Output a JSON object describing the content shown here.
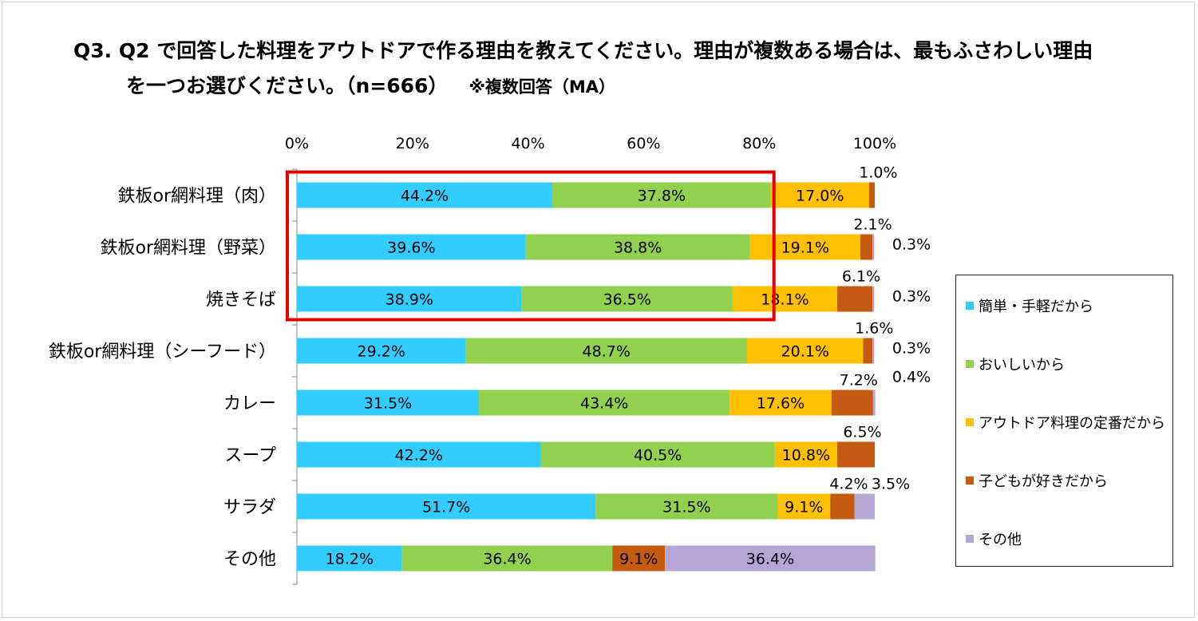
{
  "title": {
    "line1": "Q3. Q2 で回答した料理をアウトドアで作る理由を教えてください。理由が複数ある場合は、最もふさわしい理由",
    "line2": "を一つお選びください。（n=666）",
    "note": "※複数回答（MA）"
  },
  "chart_data": {
    "type": "bar",
    "orientation": "horizontal",
    "stacked": true,
    "percent_stacked": true,
    "categories": [
      "鉄板or網料理（肉）",
      "鉄板or網料理（野菜）",
      "焼きそば",
      "鉄板or網料理（シーフード）",
      "カレー",
      "スープ",
      "サラダ",
      "その他"
    ],
    "series": [
      {
        "name": "簡単・手軽だから",
        "color": "#33ccff",
        "values": [
          44.2,
          39.6,
          38.9,
          29.2,
          31.5,
          42.2,
          51.7,
          18.2
        ],
        "labels": [
          "44.2%",
          "39.6%",
          "38.9%",
          "29.2%",
          "31.5%",
          "42.2%",
          "51.7%",
          "18.2%"
        ]
      },
      {
        "name": "おいしいから",
        "color": "#92d050",
        "values": [
          37.8,
          38.8,
          36.5,
          48.7,
          43.4,
          40.5,
          31.5,
          36.4
        ],
        "labels": [
          "37.8%",
          "38.8%",
          "36.5%",
          "48.7%",
          "43.4%",
          "40.5%",
          "31.5%",
          "36.4%"
        ]
      },
      {
        "name": "アウトドア料理の定番だから",
        "color": "#ffc000",
        "values": [
          17.0,
          19.1,
          18.1,
          20.1,
          17.6,
          10.8,
          9.1,
          0
        ],
        "labels": [
          "17.0%",
          "19.1%",
          "18.1%",
          "20.1%",
          "17.6%",
          "10.8%",
          "9.1%",
          ""
        ]
      },
      {
        "name": "子どもが好きだから",
        "color": "#c55a11",
        "values": [
          1.0,
          2.1,
          6.1,
          1.6,
          7.2,
          6.5,
          4.2,
          9.1
        ],
        "labels": [
          "1.0%",
          "2.1%",
          "6.1%",
          "1.6%",
          "7.2%",
          "6.5%",
          "4.2%",
          "9.1%"
        ]
      },
      {
        "name": "その他",
        "color": "#b4a7d6",
        "values": [
          0,
          0.3,
          0.3,
          0.3,
          0.4,
          0,
          3.5,
          36.4
        ],
        "labels": [
          "",
          "0.3%",
          "0.3%",
          "0.3%",
          "0.4%",
          "",
          "3.5%",
          "36.4%"
        ]
      }
    ],
    "xaxis": {
      "min": 0,
      "max": 100,
      "ticks": [
        "0%",
        "20%",
        "40%",
        "60%",
        "80%",
        "100%"
      ]
    },
    "legend_position": "right",
    "highlight": {
      "label": "red-box",
      "categories": [
        "鉄板or網料理（肉）",
        "鉄板or網料理（野菜）",
        "焼きそば"
      ],
      "series": [
        "簡単・手軽だから",
        "おいしいから"
      ]
    }
  }
}
